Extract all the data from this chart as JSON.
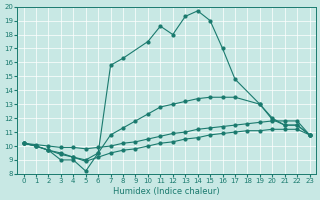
{
  "xlabel": "Humidex (Indice chaleur)",
  "line_color": "#1a7a6e",
  "bg_color": "#c8e8e4",
  "grid_color": "#ffffff",
  "ylim": [
    8,
    20
  ],
  "xlim": [
    -0.5,
    23.5
  ],
  "yticks": [
    8,
    9,
    10,
    11,
    12,
    13,
    14,
    15,
    16,
    17,
    18,
    19,
    20
  ],
  "xticks": [
    0,
    1,
    2,
    3,
    4,
    5,
    6,
    7,
    8,
    9,
    10,
    11,
    12,
    13,
    14,
    15,
    16,
    17,
    18,
    19,
    20,
    21,
    22,
    23
  ],
  "line_main_x": [
    0,
    1,
    2,
    3,
    4,
    5,
    6,
    7,
    8,
    10,
    11,
    12,
    13,
    14,
    15,
    16,
    17,
    19,
    20,
    21,
    22,
    23
  ],
  "line_main_y": [
    10.2,
    10.0,
    9.7,
    9.0,
    9.0,
    8.2,
    9.5,
    15.8,
    16.3,
    17.5,
    18.6,
    18.0,
    19.3,
    19.7,
    19.0,
    17.0,
    14.8,
    13.0,
    11.9,
    11.5,
    11.5,
    10.8
  ],
  "line_high_x": [
    0,
    1,
    2,
    3,
    4,
    5,
    6,
    7,
    8,
    9,
    10,
    11,
    12,
    13,
    14,
    15,
    16,
    17,
    19,
    20,
    21,
    22,
    23
  ],
  "line_high_y": [
    10.2,
    10.0,
    9.7,
    9.5,
    9.2,
    9.0,
    9.5,
    10.8,
    11.3,
    11.8,
    12.3,
    12.8,
    13.0,
    13.2,
    13.4,
    13.5,
    13.5,
    13.5,
    13.0,
    12.0,
    11.5,
    11.5,
    10.8
  ],
  "line_mid_x": [
    0,
    1,
    2,
    3,
    4,
    5,
    6,
    7,
    8,
    9,
    10,
    11,
    12,
    13,
    14,
    15,
    16,
    17,
    18,
    19,
    20,
    21,
    22,
    23
  ],
  "line_mid_y": [
    10.2,
    10.1,
    10.0,
    9.9,
    9.9,
    9.8,
    9.9,
    10.0,
    10.2,
    10.3,
    10.5,
    10.7,
    10.9,
    11.0,
    11.2,
    11.3,
    11.4,
    11.5,
    11.6,
    11.7,
    11.8,
    11.8,
    11.8,
    10.8
  ],
  "line_low_x": [
    0,
    1,
    2,
    3,
    4,
    5,
    6,
    7,
    8,
    9,
    10,
    11,
    12,
    13,
    14,
    15,
    16,
    17,
    18,
    19,
    20,
    21,
    22,
    23
  ],
  "line_low_y": [
    10.2,
    10.0,
    9.7,
    9.4,
    9.2,
    8.9,
    9.2,
    9.5,
    9.7,
    9.8,
    10.0,
    10.2,
    10.3,
    10.5,
    10.6,
    10.8,
    10.9,
    11.0,
    11.1,
    11.1,
    11.2,
    11.2,
    11.2,
    10.8
  ]
}
